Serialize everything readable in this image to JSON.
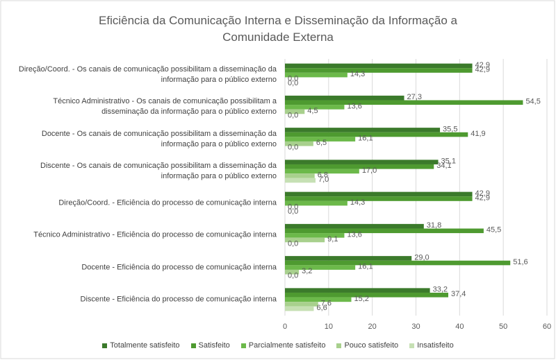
{
  "chart_data": {
    "type": "hbar",
    "title": "Eficiência da Comunicação Interna e Disseminação da Informação a Comunidade Externa",
    "categories": [
      "Direção/Coord. - Os canais de comunicação possibilitam a disseminação da informação para o público externo",
      "Técnico Administrativo - Os canais de comunicação possibilitam a disseminação da informação para o público externo",
      "Docente - Os canais de comunicação possibilitam a disseminação da informação para o público externo",
      "Discente - Os canais de comunicação possibilitam a disseminação da informação para o público externo",
      "Direção/Coord. - Eficiência do processo de comunicação interna",
      "Técnico Administrativo - Eficiência do processo de comunicação interna",
      "Docente - Eficiência do processo de comunicação interna",
      "Discente - Eficiência do processo de comunicação interna"
    ],
    "series": [
      {
        "name": "Totalmente satisfeito",
        "color": "#3b7a2b",
        "values": [
          42.9,
          27.3,
          35.5,
          35.1,
          42.9,
          31.8,
          29.0,
          33.2
        ],
        "value_labels": [
          "42,9",
          "27,3",
          "35,5",
          "35,1",
          "42,9",
          "31,8",
          "29,0",
          "33,2"
        ]
      },
      {
        "name": "Satisfeito",
        "color": "#4e9a30",
        "values": [
          42.9,
          54.5,
          41.9,
          34.1,
          42.9,
          45.5,
          51.6,
          37.4
        ],
        "value_labels": [
          "42,9",
          "54,5",
          "41,9",
          "34,1",
          "42,9",
          "45,5",
          "51,6",
          "37,4"
        ]
      },
      {
        "name": "Parcialmente satisfeito",
        "color": "#6cb94a",
        "values": [
          14.3,
          13.6,
          16.1,
          17.0,
          14.3,
          13.6,
          16.1,
          15.2
        ],
        "value_labels": [
          "14,3",
          "13,6",
          "16,1",
          "17,0",
          "14,3",
          "13,6",
          "16,1",
          "15,2"
        ]
      },
      {
        "name": "Pouco satisfeito",
        "color": "#a8d08d",
        "values": [
          0.0,
          4.5,
          6.5,
          6.8,
          0.0,
          9.1,
          3.2,
          7.6
        ],
        "value_labels": [
          "0,0",
          "4,5",
          "6,5",
          "6,8",
          "0,0",
          "9,1",
          "3,2",
          "7,6"
        ]
      },
      {
        "name": "Insatisfeito",
        "color": "#c6e0b4",
        "values": [
          0.0,
          0.0,
          0.0,
          7.0,
          0.0,
          0.0,
          0.0,
          6.6
        ],
        "value_labels": [
          "0,0",
          "0,0",
          "0,0",
          "7,0",
          "0,0",
          "0,0",
          "0,0",
          "6,6"
        ]
      }
    ],
    "xlim": [
      0,
      60
    ],
    "xticks": [
      0,
      10,
      20,
      30,
      40,
      50,
      60
    ],
    "grid": true,
    "legend": "bottom"
  }
}
